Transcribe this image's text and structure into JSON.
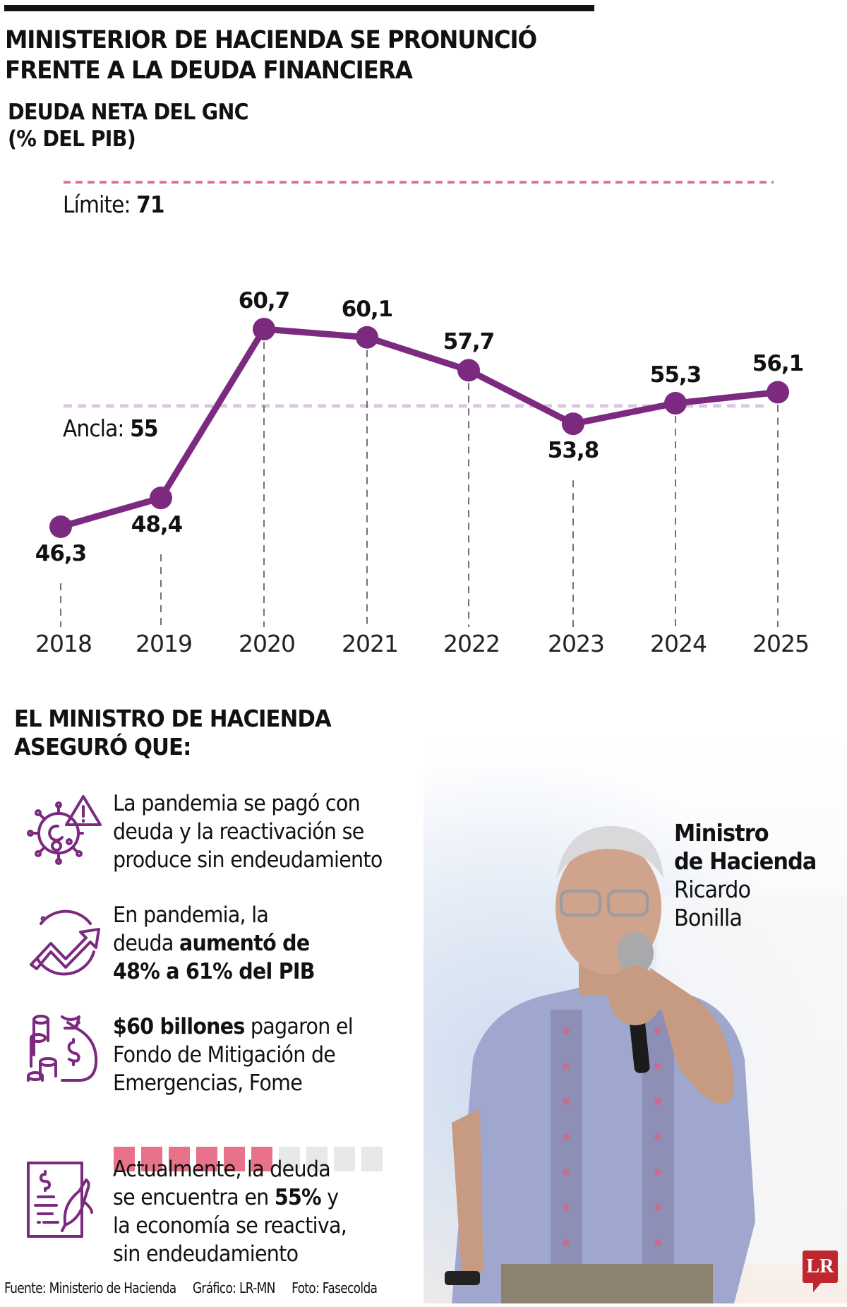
{
  "header": {
    "title_line1": "MINISTERIOR DE HACIENDA SE PRONUNCIÓ",
    "title_line2": "FRENTE A LA DEUDA FINANCIERA",
    "subtitle_line1": "DEUDA NETA DEL GNC",
    "subtitle_line2": "(% DEL PIB)"
  },
  "colors": {
    "line": "#7b2a7f",
    "limit_line": "#e8728a",
    "anchor_line": "#dcc6e2",
    "square_filled": "#e8728a",
    "square_empty": "#e8e8e8",
    "logo": "#c0262d"
  },
  "chart_data": {
    "type": "line",
    "title": "Deuda neta del GNC (% del PIB)",
    "xlabel": "",
    "ylabel": "% del PIB",
    "categories": [
      "2018",
      "2019",
      "2020",
      "2021",
      "2022",
      "2023",
      "2024",
      "2025"
    ],
    "values": [
      46.3,
      48.4,
      60.7,
      60.1,
      57.7,
      53.8,
      55.3,
      56.1
    ],
    "value_labels": [
      "46,3",
      "48,4",
      "60,7",
      "60,1",
      "57,7",
      "53,8",
      "55,3",
      "56,1"
    ],
    "reference_lines": [
      {
        "label": "Límite",
        "value": 71,
        "value_label": "71"
      },
      {
        "label": "Ancla",
        "value": 55,
        "value_label": "55"
      }
    ],
    "grid": false,
    "legend": "none"
  },
  "chart": {
    "limit_label": "Límite:",
    "limit_value": "71",
    "anchor_label": "Ancla:",
    "anchor_value": "55"
  },
  "section": {
    "heading_line1": "EL MINISTRO DE HACIENDA",
    "heading_line2": "ASEGURÓ QUE:",
    "points": [
      {
        "icon": "virus-warning-icon",
        "lines": [
          "La pandemia se pagó con",
          "deuda y la reactivación se",
          "produce sin endeudamiento"
        ]
      },
      {
        "icon": "trend-up-icon",
        "line1": "En pandemia, la",
        "line2_normal": "deuda ",
        "line2_bold": "aumentó de",
        "line3_bold": "48% a 61% del PIB"
      },
      {
        "icon": "money-bag-icon",
        "line1_bold": "$60 billones",
        "line1_normal": " pagaron el",
        "line2": "Fondo de Mitigación de",
        "line3": "Emergencias, Fome",
        "squares_filled": 6,
        "squares_total": 10
      },
      {
        "icon": "signed-document-icon",
        "line1": "Actualmente, la deuda",
        "line2_normal": "se encuentra en ",
        "line2_bold": "55%",
        "line2_end": " y",
        "line3": "la economía se reactiva,",
        "line4": "sin endeudamiento"
      }
    ]
  },
  "minister": {
    "role_line1": "Ministro",
    "role_line2": "de Hacienda",
    "name_line1": "Ricardo",
    "name_line2": "Bonilla"
  },
  "footer": {
    "source": "Fuente: Ministerio de Hacienda",
    "graphic": "Gráfico: LR-MN",
    "photo": "Foto: Fasecolda"
  },
  "logo": {
    "text": "LR"
  }
}
